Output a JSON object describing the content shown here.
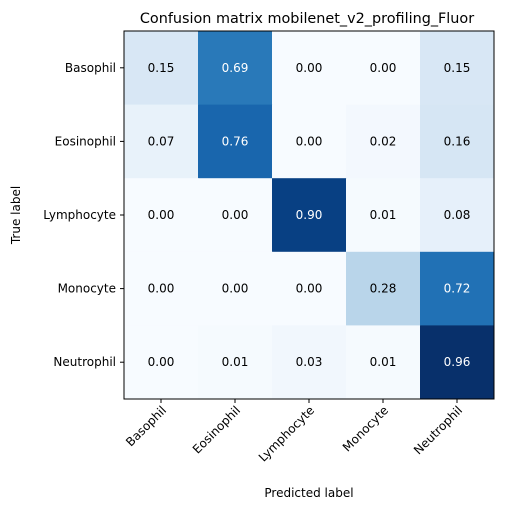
{
  "chart_data": {
    "type": "heatmap",
    "title": "Confusion matrix mobilenet_v2_profiling_Fluor",
    "xlabel": "Predicted label",
    "ylabel": "True label",
    "x_categories": [
      "Basophil",
      "Eosinophil",
      "Lymphocyte",
      "Monocyte",
      "Neutrophil"
    ],
    "y_categories": [
      "Basophil",
      "Eosinophil",
      "Lymphocyte",
      "Monocyte",
      "Neutrophil"
    ],
    "values": [
      [
        0.15,
        0.69,
        0.0,
        0.0,
        0.15
      ],
      [
        0.07,
        0.76,
        0.0,
        0.02,
        0.16
      ],
      [
        0.0,
        0.0,
        0.9,
        0.01,
        0.08
      ],
      [
        0.0,
        0.0,
        0.0,
        0.28,
        0.72
      ],
      [
        0.0,
        0.01,
        0.03,
        0.01,
        0.96
      ]
    ],
    "colormap": "Blues",
    "value_range": [
      0.0,
      0.96
    ],
    "grid": false,
    "colors": {
      "low": "#f7fbff",
      "high": "#08306b",
      "text_dark": "#000000",
      "text_light": "#ffffff"
    }
  }
}
